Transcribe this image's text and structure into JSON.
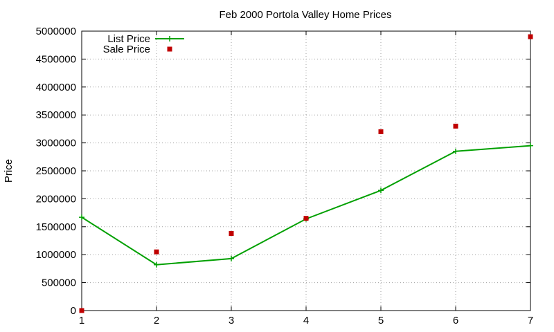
{
  "chart_data": {
    "type": "line",
    "title": "Feb 2000 Portola Valley Home Prices",
    "xlabel": "",
    "ylabel": "Price",
    "x": [
      1,
      2,
      3,
      4,
      5,
      6,
      7
    ],
    "xlim": [
      1,
      7
    ],
    "ylim": [
      0,
      5000000
    ],
    "xticks": [
      1,
      2,
      3,
      4,
      5,
      6,
      7
    ],
    "yticks": [
      0,
      500000,
      1000000,
      1500000,
      2000000,
      2500000,
      3000000,
      3500000,
      4000000,
      4500000,
      5000000
    ],
    "xtick_labels": [
      "1",
      "2",
      "3",
      "4",
      "5",
      "6",
      "7"
    ],
    "ytick_labels": [
      "0",
      "500000",
      "1000000",
      "1500000",
      "2000000",
      "2500000",
      "3000000",
      "3500000",
      "4000000",
      "4500000",
      "5000000"
    ],
    "grid": true,
    "legend_position": "top-left",
    "series": [
      {
        "name": "List Price",
        "style": "line-points",
        "color": "#00a000",
        "marker": "plus",
        "values": [
          1670000,
          820000,
          930000,
          1640000,
          2150000,
          2850000,
          2950000
        ]
      },
      {
        "name": "Sale Price",
        "style": "points",
        "color": "#c00000",
        "marker": "square",
        "values": [
          0,
          1050000,
          1380000,
          1650000,
          3200000,
          3300000,
          4900000
        ]
      }
    ]
  }
}
